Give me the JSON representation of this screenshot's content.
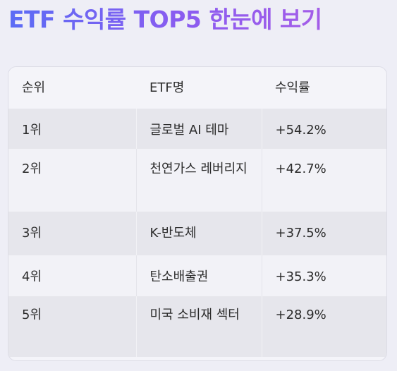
{
  "page": {
    "title": "ETF 수익률 TOP5 한눈에 보기"
  },
  "table": {
    "headers": [
      "순위",
      "ETF명",
      "수익률"
    ],
    "rows": [
      {
        "rank": "1위",
        "name": "글로벌 AI 테마",
        "return": "+54.2%"
      },
      {
        "rank": "2위",
        "name": "천연가스 레버리지",
        "return": "+42.7%"
      },
      {
        "rank": "3위",
        "name": "K-반도체",
        "return": "+37.5%"
      },
      {
        "rank": "4위",
        "name": "탄소배출권",
        "return": "+35.3%"
      },
      {
        "rank": "5위",
        "name": "미국 소비재 섹터",
        "return": "+28.9%"
      }
    ]
  },
  "colors": {
    "title_gradient_start": "#5b6cf5",
    "title_gradient_end": "#a45de8",
    "background": "#eeeef6",
    "row_shaded": "#e6e6ec",
    "row_plain": "#f2f2f7"
  }
}
